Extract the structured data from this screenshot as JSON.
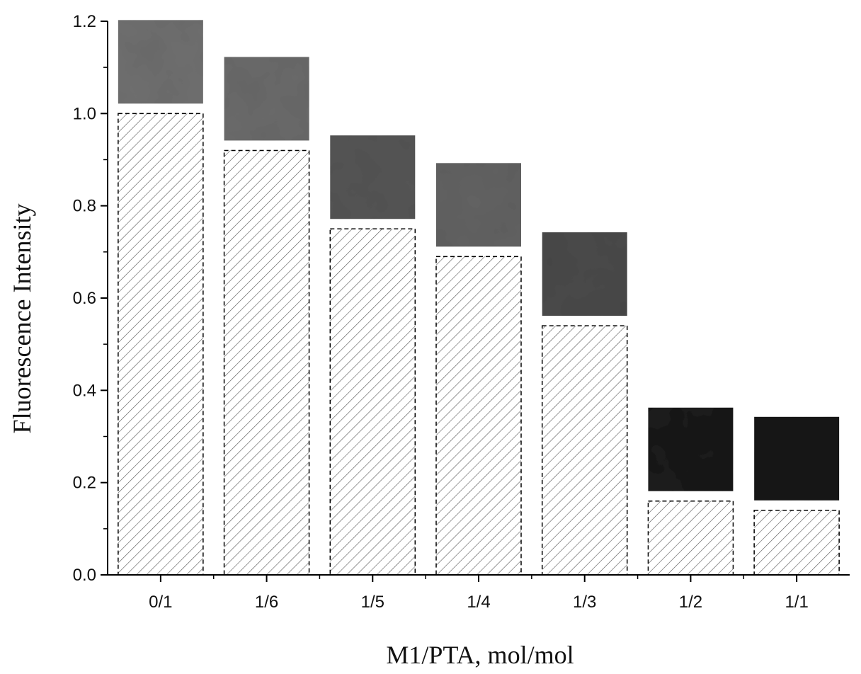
{
  "chart_data": {
    "type": "bar",
    "categories": [
      "0/1",
      "1/6",
      "1/5",
      "1/4",
      "1/3",
      "1/2",
      "1/1"
    ],
    "values": [
      1.0,
      0.92,
      0.75,
      0.69,
      0.54,
      0.16,
      0.14
    ],
    "title": "",
    "xlabel": "M1/PTA, mol/mol",
    "ylabel": "Fluorescence Intensity",
    "ylim": [
      0.0,
      1.2
    ],
    "yticks": [
      "0.0",
      "0.2",
      "0.4",
      "0.6",
      "0.8",
      "1.0",
      "1.2"
    ],
    "grid": false,
    "bar_style": "hatched, dashed outline",
    "fluorescence_images": {
      "description_colors": [
        "#6f6f6f",
        "#6a6a6a",
        "#555555",
        "#626262",
        "#4a4a4a",
        "#1a1a1a",
        "#161616"
      ]
    }
  }
}
